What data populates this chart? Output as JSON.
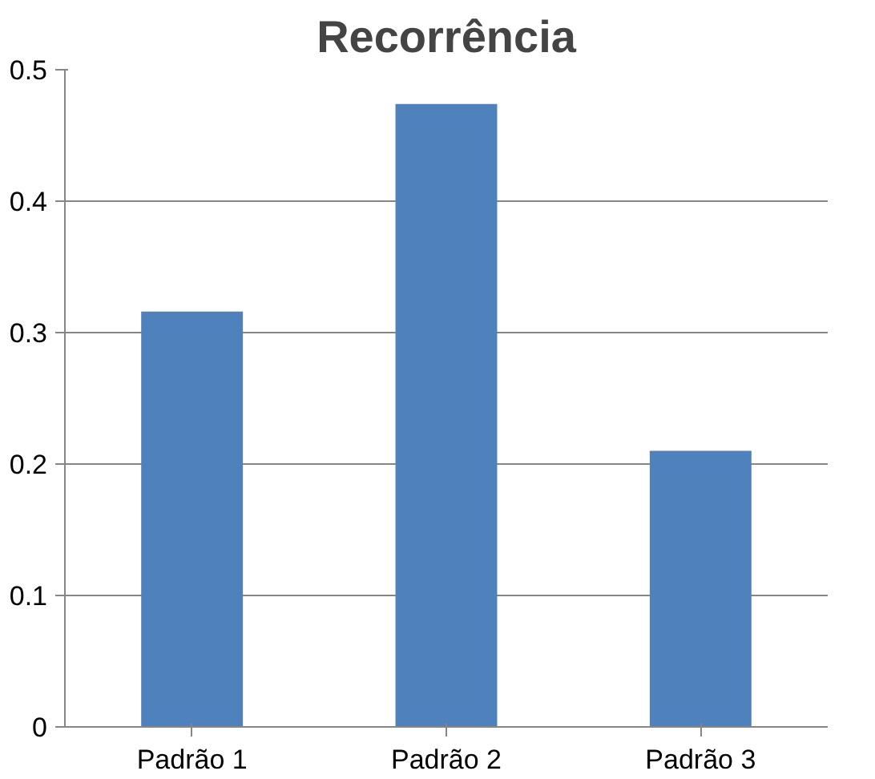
{
  "chart_data": {
    "type": "bar",
    "title": "Recorrência",
    "categories": [
      "Padrão 1",
      "Padrão 2",
      "Padrão 3"
    ],
    "values": [
      0.316,
      0.474,
      0.21
    ],
    "color": "#4f81bd",
    "ylim": [
      0,
      0.5
    ],
    "yticks": [
      0,
      0.1,
      0.2,
      0.3,
      0.4,
      0.5
    ],
    "grid": "y"
  }
}
